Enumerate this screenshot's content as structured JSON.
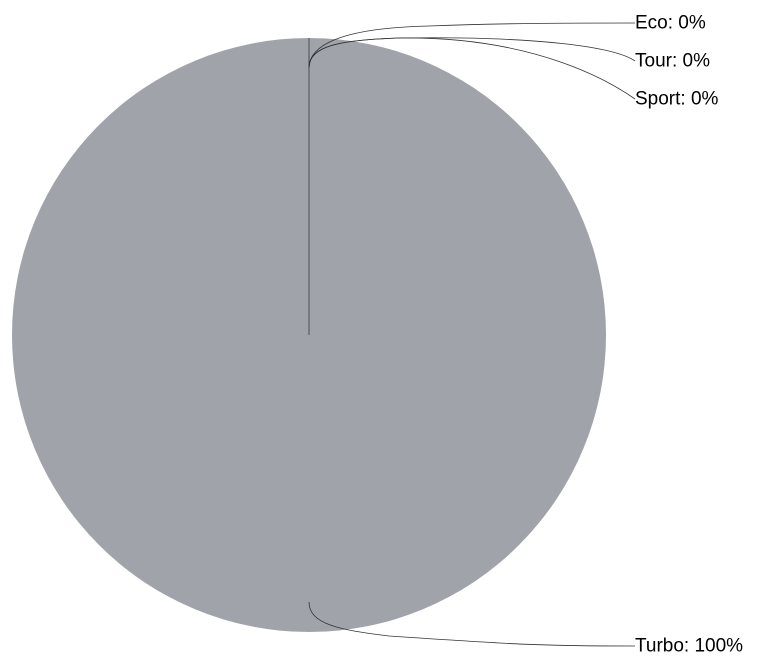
{
  "chart_data": {
    "type": "pie",
    "categories": [
      "Eco",
      "Tour",
      "Sport",
      "Turbo"
    ],
    "values": [
      0,
      0,
      0,
      100
    ],
    "labels": [
      "Eco: 0%",
      "Tour: 0%",
      "Sport: 0%",
      "Turbo: 100%"
    ],
    "colors": [
      "#a1a3ab",
      "#a1a3ab",
      "#a1a3ab",
      "#a1a3ab"
    ],
    "title": "",
    "legend": "none"
  }
}
